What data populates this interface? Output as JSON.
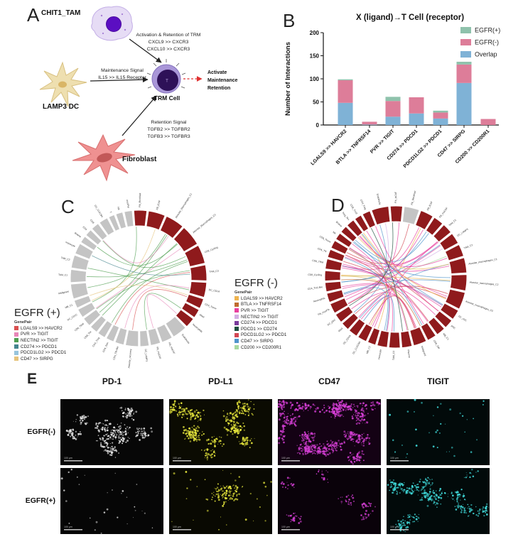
{
  "panels": {
    "A": {
      "label": "A",
      "cells": {
        "tam": "CHIT1_TAM",
        "dc": "LAMP3 DC",
        "fibroblast": "Fibroblast",
        "trm": "TRM Cell",
        "trm_letter": "T"
      },
      "signals": {
        "tam_to_trm": [
          "Activation & Retention of TRM",
          "CXCL9 >> CXCR3",
          "CXCL10 >> CXCR3"
        ],
        "dc_to_trm": [
          "Maintenance Signal",
          "IL15 >> IL15 Receptor"
        ],
        "fib_to_trm": [
          "Retention Signal",
          "TGFB2 >> TGFBR2",
          "TGFB3 >> TGFBR3"
        ],
        "outcome": [
          "Activate",
          "Maintenance",
          "Retention"
        ]
      },
      "arrow_color": "#222222",
      "outcome_arrow_color": "#e03131"
    },
    "B": {
      "label": "B"
    },
    "C": {
      "label": "C",
      "ring_colors": {
        "red": "#8f1a1c",
        "gray": "#c4c4c4"
      },
      "legend": {
        "title": "EGFR (+)",
        "subtitle": "GenePair",
        "items": [
          {
            "label": "LGALS9 >> HAVCR2",
            "color": "#d94f4f"
          },
          {
            "label": "PVR >> TIGIT",
            "color": "#e886b8"
          },
          {
            "label": "NECTIN2 >> TIGIT",
            "color": "#4d9e4f"
          },
          {
            "label": "CD274 >> PDCD1",
            "color": "#44858e"
          },
          {
            "label": "PDCD1LG2 >> PDCD1",
            "color": "#97c4dd"
          },
          {
            "label": "CD47 >> SIRPG",
            "color": "#e6c37c"
          }
        ]
      },
      "segments": [
        {
          "name": "Fib_fibroblast",
          "color": "red",
          "w": 1.3
        },
        {
          "name": "FB_ICAF",
          "color": "red",
          "w": 1.7
        },
        {
          "name": "Alveolar_Macrophages_C1",
          "color": "red",
          "w": 1.9
        },
        {
          "name": "Alveolar_Macrophages_C3",
          "color": "red",
          "w": 2.1
        },
        {
          "name": "CD8_Cycling",
          "color": "red",
          "w": 1.9
        },
        {
          "name": "TAM_C3",
          "color": "red",
          "w": 1.6
        },
        {
          "name": "DC_CD1A",
          "color": "red",
          "w": 1.5
        },
        {
          "name": "CD4_Tconv",
          "color": "red",
          "w": 1.0
        },
        {
          "name": "Mast",
          "color": "red",
          "w": 0.9
        },
        {
          "name": "Neutrophils",
          "color": "red",
          "w": 1.0
        },
        {
          "name": "Endothelia",
          "color": "gray",
          "w": 1.5
        },
        {
          "name": "Fib_HsCAF",
          "color": "gray",
          "w": 1.1
        },
        {
          "name": "FB_myCAF",
          "color": "gray",
          "w": 1.0
        },
        {
          "name": "DC_LAMP3",
          "color": "gray",
          "w": 0.9
        },
        {
          "name": "Alveolar_recovery",
          "color": "gray",
          "w": 1.3
        },
        {
          "name": "CD4_Tfh-like",
          "color": "gray",
          "w": 0.9
        },
        {
          "name": "CD4_Tem",
          "color": "gray",
          "w": 0.8
        },
        {
          "name": "CD4_Treg",
          "color": "gray",
          "w": 0.8
        },
        {
          "name": "CD8_Tex",
          "color": "gray",
          "w": 0.8
        },
        {
          "name": "CD8_TRM",
          "color": "gray",
          "w": 0.9
        },
        {
          "name": "DC_CD1C",
          "color": "gray",
          "w": 0.9
        },
        {
          "name": "MB_C1",
          "color": "gray",
          "w": 0.8
        },
        {
          "name": "Malignant",
          "color": "gray",
          "w": 1.5
        },
        {
          "name": "TAM_C1",
          "color": "gray",
          "w": 1.3
        },
        {
          "name": "TAM_C2",
          "color": "gray",
          "w": 1.3
        },
        {
          "name": "monocyte",
          "color": "gray",
          "w": 1.1
        },
        {
          "name": "Bnaive",
          "color": "gray",
          "w": 0.7
        },
        {
          "name": "CD4",
          "color": "gray",
          "w": 0.7
        },
        {
          "name": "CD8",
          "color": "gray",
          "w": 0.8
        },
        {
          "name": "DC_CLEC9A",
          "color": "gray",
          "w": 0.9
        },
        {
          "name": "T",
          "color": "gray",
          "w": 0.6
        },
        {
          "name": "NK",
          "color": "gray",
          "w": 0.7
        },
        {
          "name": "eosiPhil",
          "color": "gray",
          "w": 0.8
        }
      ],
      "chords": [
        [
          0,
          20,
          2
        ],
        [
          1,
          21,
          5
        ],
        [
          2,
          19,
          2
        ],
        [
          2,
          22,
          2
        ],
        [
          3,
          18,
          2
        ],
        [
          3,
          20,
          1
        ],
        [
          4,
          17,
          2
        ],
        [
          4,
          23,
          2
        ],
        [
          5,
          16,
          0
        ],
        [
          5,
          19,
          2
        ],
        [
          6,
          24,
          2
        ],
        [
          6,
          15,
          1
        ],
        [
          7,
          14,
          0
        ],
        [
          7,
          21,
          5
        ],
        [
          8,
          13,
          2
        ],
        [
          9,
          12,
          1
        ],
        [
          5,
          25,
          3
        ],
        [
          3,
          26,
          2
        ],
        [
          4,
          27,
          2
        ],
        [
          2,
          28,
          1
        ]
      ]
    },
    "D": {
      "label": "D",
      "ring_colors": {
        "red": "#8f1a1c",
        "gray": "#c4c4c4"
      },
      "legend": {
        "title": "EGFR (-)",
        "subtitle": "GenePair",
        "items": [
          {
            "label": "LGALS9 >> HAVCR2",
            "color": "#efb44f"
          },
          {
            "label": "BTLA >> TNFRSF14",
            "color": "#bf6b2e"
          },
          {
            "label": "PVR >> TIGIT",
            "color": "#e83f9e"
          },
          {
            "label": "NECTIN2 >> TIGIT",
            "color": "#d3aee3"
          },
          {
            "label": "CD274 >> PDCD1",
            "color": "#7a3b9b"
          },
          {
            "label": "PDCD1 >> CD274",
            "color": "#1f4f3f"
          },
          {
            "label": "PDCD1LG2 >> PDCD1",
            "color": "#d24753"
          },
          {
            "label": "CD47 >> SIRPG",
            "color": "#4f94cc"
          },
          {
            "label": "CD200 >> CD200R1",
            "color": "#a7d9a0"
          }
        ]
      },
      "segments": [
        {
          "name": "Endothelia",
          "color": "red",
          "w": 1.7
        },
        {
          "name": "Fib_IsCAF",
          "color": "red",
          "w": 1.2
        },
        {
          "name": "Fib_fibroblast",
          "color": "gray",
          "w": 1.5
        },
        {
          "name": "FB_ICAF",
          "color": "red",
          "w": 1.3
        },
        {
          "name": "FB_myCAF",
          "color": "red",
          "w": 1.0
        },
        {
          "name": "TAM_C1",
          "color": "red",
          "w": 1.0
        },
        {
          "name": "DC_LAMP3",
          "color": "red",
          "w": 1.1
        },
        {
          "name": "TAM_C2",
          "color": "red",
          "w": 1.2
        },
        {
          "name": "Alveolar_macrophages_C1",
          "color": "red",
          "w": 1.5
        },
        {
          "name": "Alveolar_macrophages_C2",
          "color": "red",
          "w": 1.6
        },
        {
          "name": "Alveolar_macrophages_C3",
          "color": "red",
          "w": 1.7
        },
        {
          "name": "DC_cDC",
          "color": "red",
          "w": 1.0
        },
        {
          "name": "pDC",
          "color": "red",
          "w": 0.9
        },
        {
          "name": "MB_C1",
          "color": "red",
          "w": 0.9
        },
        {
          "name": "CD8_SW",
          "color": "red",
          "w": 0.9
        },
        {
          "name": "Malignant",
          "color": "red",
          "w": 1.3
        },
        {
          "name": "Plasma",
          "color": "red",
          "w": 1.0
        },
        {
          "name": "TAM_C3",
          "color": "red",
          "w": 1.1
        },
        {
          "name": "monocyte",
          "color": "red",
          "w": 1.0
        },
        {
          "name": "MB_C2",
          "color": "red",
          "w": 0.8
        },
        {
          "name": "DC_CLEC9A",
          "color": "red",
          "w": 0.9
        },
        {
          "name": "DC_CD1A",
          "color": "red",
          "w": 0.9
        },
        {
          "name": "Mast",
          "color": "red",
          "w": 0.8
        },
        {
          "name": "DC_pDC",
          "color": "red",
          "w": 0.9
        },
        {
          "name": "Fib_myoFib",
          "color": "red",
          "w": 1.0
        },
        {
          "name": "Neutrophils",
          "color": "red",
          "w": 0.9
        },
        {
          "name": "CD4_TH1-like",
          "color": "red",
          "w": 0.9
        },
        {
          "name": "CD8_Cycling",
          "color": "red",
          "w": 1.0
        },
        {
          "name": "CD8_TRM",
          "color": "red",
          "w": 1.0
        },
        {
          "name": "CD4_TN",
          "color": "red",
          "w": 0.8
        },
        {
          "name": "CD8_Tconv",
          "color": "red",
          "w": 0.8
        },
        {
          "name": "NK",
          "color": "red",
          "w": 0.7
        },
        {
          "name": "Bnaive",
          "color": "red",
          "w": 0.7
        },
        {
          "name": "Treg_Tex",
          "color": "red",
          "w": 0.8
        },
        {
          "name": "CD8_Trm2",
          "color": "red",
          "w": 0.7
        },
        {
          "name": "CD4_Treg",
          "color": "red",
          "w": 0.8
        }
      ],
      "chords": [
        [
          0,
          22,
          7
        ],
        [
          1,
          24,
          2
        ],
        [
          3,
          20,
          0
        ],
        [
          3,
          28,
          2
        ],
        [
          4,
          26,
          7
        ],
        [
          5,
          30,
          2
        ],
        [
          6,
          25,
          3
        ],
        [
          7,
          27,
          8
        ],
        [
          8,
          29,
          2
        ],
        [
          9,
          31,
          7
        ],
        [
          10,
          24,
          6
        ],
        [
          10,
          33,
          2
        ],
        [
          11,
          28,
          4
        ],
        [
          12,
          30,
          6
        ],
        [
          13,
          26,
          2
        ],
        [
          14,
          32,
          7
        ],
        [
          15,
          27,
          0
        ],
        [
          15,
          21,
          2
        ],
        [
          16,
          29,
          6
        ],
        [
          17,
          31,
          2
        ],
        [
          18,
          25,
          7
        ],
        [
          19,
          33,
          0
        ],
        [
          20,
          5,
          2
        ],
        [
          21,
          8,
          7
        ],
        [
          22,
          10,
          6
        ],
        [
          23,
          15,
          2
        ],
        [
          24,
          0,
          3
        ],
        [
          25,
          3,
          2
        ],
        [
          26,
          6,
          7
        ],
        [
          27,
          9,
          0
        ],
        [
          28,
          11,
          2
        ],
        [
          29,
          13,
          6
        ],
        [
          30,
          16,
          8
        ],
        [
          31,
          18,
          2
        ],
        [
          32,
          4,
          7
        ],
        [
          33,
          7,
          2
        ],
        [
          34,
          10,
          0
        ],
        [
          35,
          12,
          2
        ],
        [
          20,
          15,
          6
        ],
        [
          21,
          17,
          7
        ],
        [
          22,
          19,
          2
        ],
        [
          23,
          1,
          5
        ],
        [
          24,
          6,
          2
        ],
        [
          25,
          9,
          7
        ],
        [
          26,
          12,
          2
        ],
        [
          27,
          14,
          1
        ],
        [
          28,
          16,
          2
        ],
        [
          29,
          18,
          7
        ],
        [
          30,
          2,
          6
        ],
        [
          31,
          5,
          2
        ],
        [
          32,
          8,
          0
        ],
        [
          33,
          11,
          7
        ],
        [
          34,
          14,
          2
        ],
        [
          35,
          16,
          5
        ]
      ]
    },
    "E": {
      "label": "E",
      "columns": [
        "PD-1",
        "PD-L1",
        "CD47",
        "TIGIT"
      ],
      "rows": [
        "EGFR(-)",
        "EGFR(+)"
      ],
      "scale_bar_text": "100 µm",
      "images": [
        {
          "row": "EGFR(-)",
          "col": "PD-1",
          "color": "#e8e8e8",
          "bg": "#070707",
          "count": 380,
          "pattern": "clustered",
          "clusters": 10,
          "seed": 11
        },
        {
          "row": "EGFR(-)",
          "col": "PD-L1",
          "color": "#e6e63c",
          "bg": "#0b0b02",
          "count": 520,
          "pattern": "clustered",
          "clusters": 14,
          "seed": 22
        },
        {
          "row": "EGFR(-)",
          "col": "CD47",
          "color": "#d63fd6",
          "bg": "#140214",
          "count": 650,
          "pattern": "edge-dense",
          "clusters": 12,
          "seed": 33
        },
        {
          "row": "EGFR(-)",
          "col": "TIGIT",
          "color": "#3fd9d9",
          "bg": "#020a0a",
          "count": 40,
          "pattern": "sparse",
          "clusters": 1,
          "seed": 44
        },
        {
          "row": "EGFR(+)",
          "col": "PD-1",
          "color": "#cfcfcf",
          "bg": "#060606",
          "count": 30,
          "pattern": "sparse",
          "clusters": 1,
          "seed": 55
        },
        {
          "row": "EGFR(+)",
          "col": "PD-L1",
          "color": "#e6e63c",
          "bg": "#090902",
          "count": 150,
          "pattern": "center-cluster",
          "clusters": 1,
          "seed": 66
        },
        {
          "row": "EGFR(+)",
          "col": "CD47",
          "color": "#d63fd6",
          "bg": "#0a020a",
          "count": 110,
          "pattern": "clustered",
          "clusters": 6,
          "seed": 77
        },
        {
          "row": "EGFR(+)",
          "col": "TIGIT",
          "color": "#3fd9d9",
          "bg": "#020a0a",
          "count": 420,
          "pattern": "clustered",
          "clusters": 16,
          "seed": 88
        }
      ]
    }
  },
  "chart_data": {
    "type": "bar",
    "stacked": true,
    "title": "X (ligand)→T Cell (receptor)",
    "xlabel": "",
    "ylabel": "Number of Interactions",
    "ylim": [
      0,
      200
    ],
    "yticks": [
      0,
      50,
      100,
      150,
      200
    ],
    "categories": [
      "LGALS9 >> HAVCR2",
      "BTLA >> TNFRSF14",
      "PVR >> TIGIT",
      "CD274 >> PDCD1",
      "PDCD1LG2 >> PDCD1",
      "CD47 >> SIRPG",
      "CD200 >> CD200R1"
    ],
    "series": [
      {
        "name": "Overlap",
        "color": "#7fb2d6",
        "values": [
          48,
          1,
          18,
          25,
          14,
          91,
          0
        ]
      },
      {
        "name": "EGFR(-)",
        "color": "#dd7d99",
        "values": [
          49,
          6,
          34,
          35,
          13,
          40,
          13
        ]
      },
      {
        "name": "EGFR(+)",
        "color": "#8fc2ac",
        "values": [
          2,
          0,
          9,
          0,
          4,
          6,
          0
        ]
      }
    ],
    "legend_order": [
      "EGFR(+)",
      "EGFR(-)",
      "Overlap"
    ],
    "legend_position": "upper right",
    "grid": false
  }
}
